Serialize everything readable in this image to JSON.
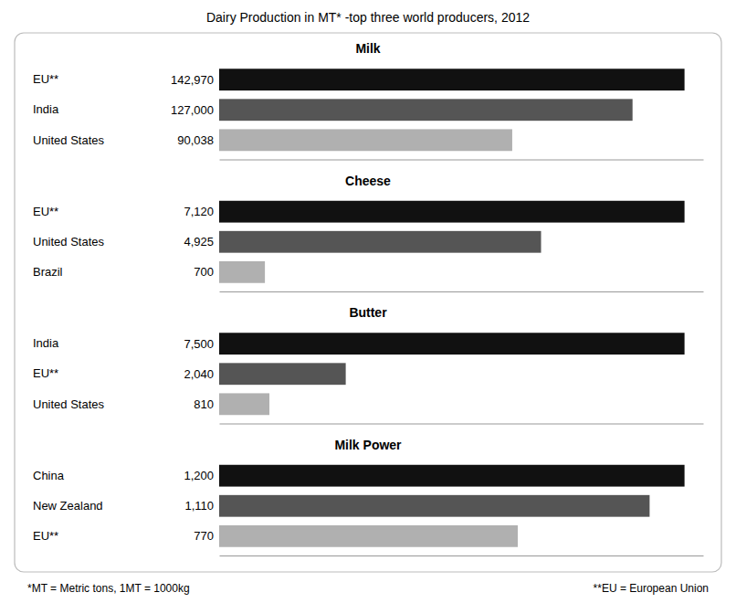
{
  "title": "Dairy Production in MT* -top three world producers, 2012",
  "annotations": [
    "*MT = Metric tons, 1MT = 1000kg",
    "**EU = European Union"
  ],
  "chart_data": [
    {
      "type": "bar",
      "orientation": "horizontal",
      "title": "Milk",
      "categories": [
        "EU**",
        "India",
        "United States"
      ],
      "values": [
        142970,
        127000,
        90038
      ],
      "value_labels": [
        "142,970",
        "127,000",
        "90,038"
      ],
      "colors": [
        "#111111",
        "#555555",
        "#b0b0b0"
      ],
      "xlim": [
        0,
        148688.8
      ],
      "data_labels": true,
      "tick_labels": "y",
      "grid": false
    },
    {
      "type": "bar",
      "orientation": "horizontal",
      "title": "Cheese",
      "categories": [
        "EU**",
        "United States",
        "Brazil"
      ],
      "values": [
        7120,
        4925,
        700
      ],
      "value_labels": [
        "7,120",
        "4,925",
        "700"
      ],
      "colors": [
        "#111111",
        "#555555",
        "#b0b0b0"
      ],
      "xlim": [
        0,
        7404.8
      ],
      "data_labels": true,
      "tick_labels": "y",
      "grid": false
    },
    {
      "type": "bar",
      "orientation": "horizontal",
      "title": "Butter",
      "categories": [
        "India",
        "EU**",
        "United States"
      ],
      "values": [
        7500,
        2040,
        810
      ],
      "value_labels": [
        "7,500",
        "2,040",
        "810"
      ],
      "colors": [
        "#111111",
        "#555555",
        "#b0b0b0"
      ],
      "xlim": [
        0,
        7800
      ],
      "data_labels": true,
      "tick_labels": "y",
      "grid": false
    },
    {
      "type": "bar",
      "orientation": "horizontal",
      "title": "Milk Power",
      "categories": [
        "China",
        "New Zealand",
        "EU**"
      ],
      "values": [
        1200,
        1110,
        770
      ],
      "value_labels": [
        "1,200",
        "1,110",
        "770"
      ],
      "colors": [
        "#111111",
        "#555555",
        "#b0b0b0"
      ],
      "xlim": [
        0,
        1248
      ],
      "data_labels": true,
      "tick_labels": "y",
      "grid": false
    }
  ]
}
